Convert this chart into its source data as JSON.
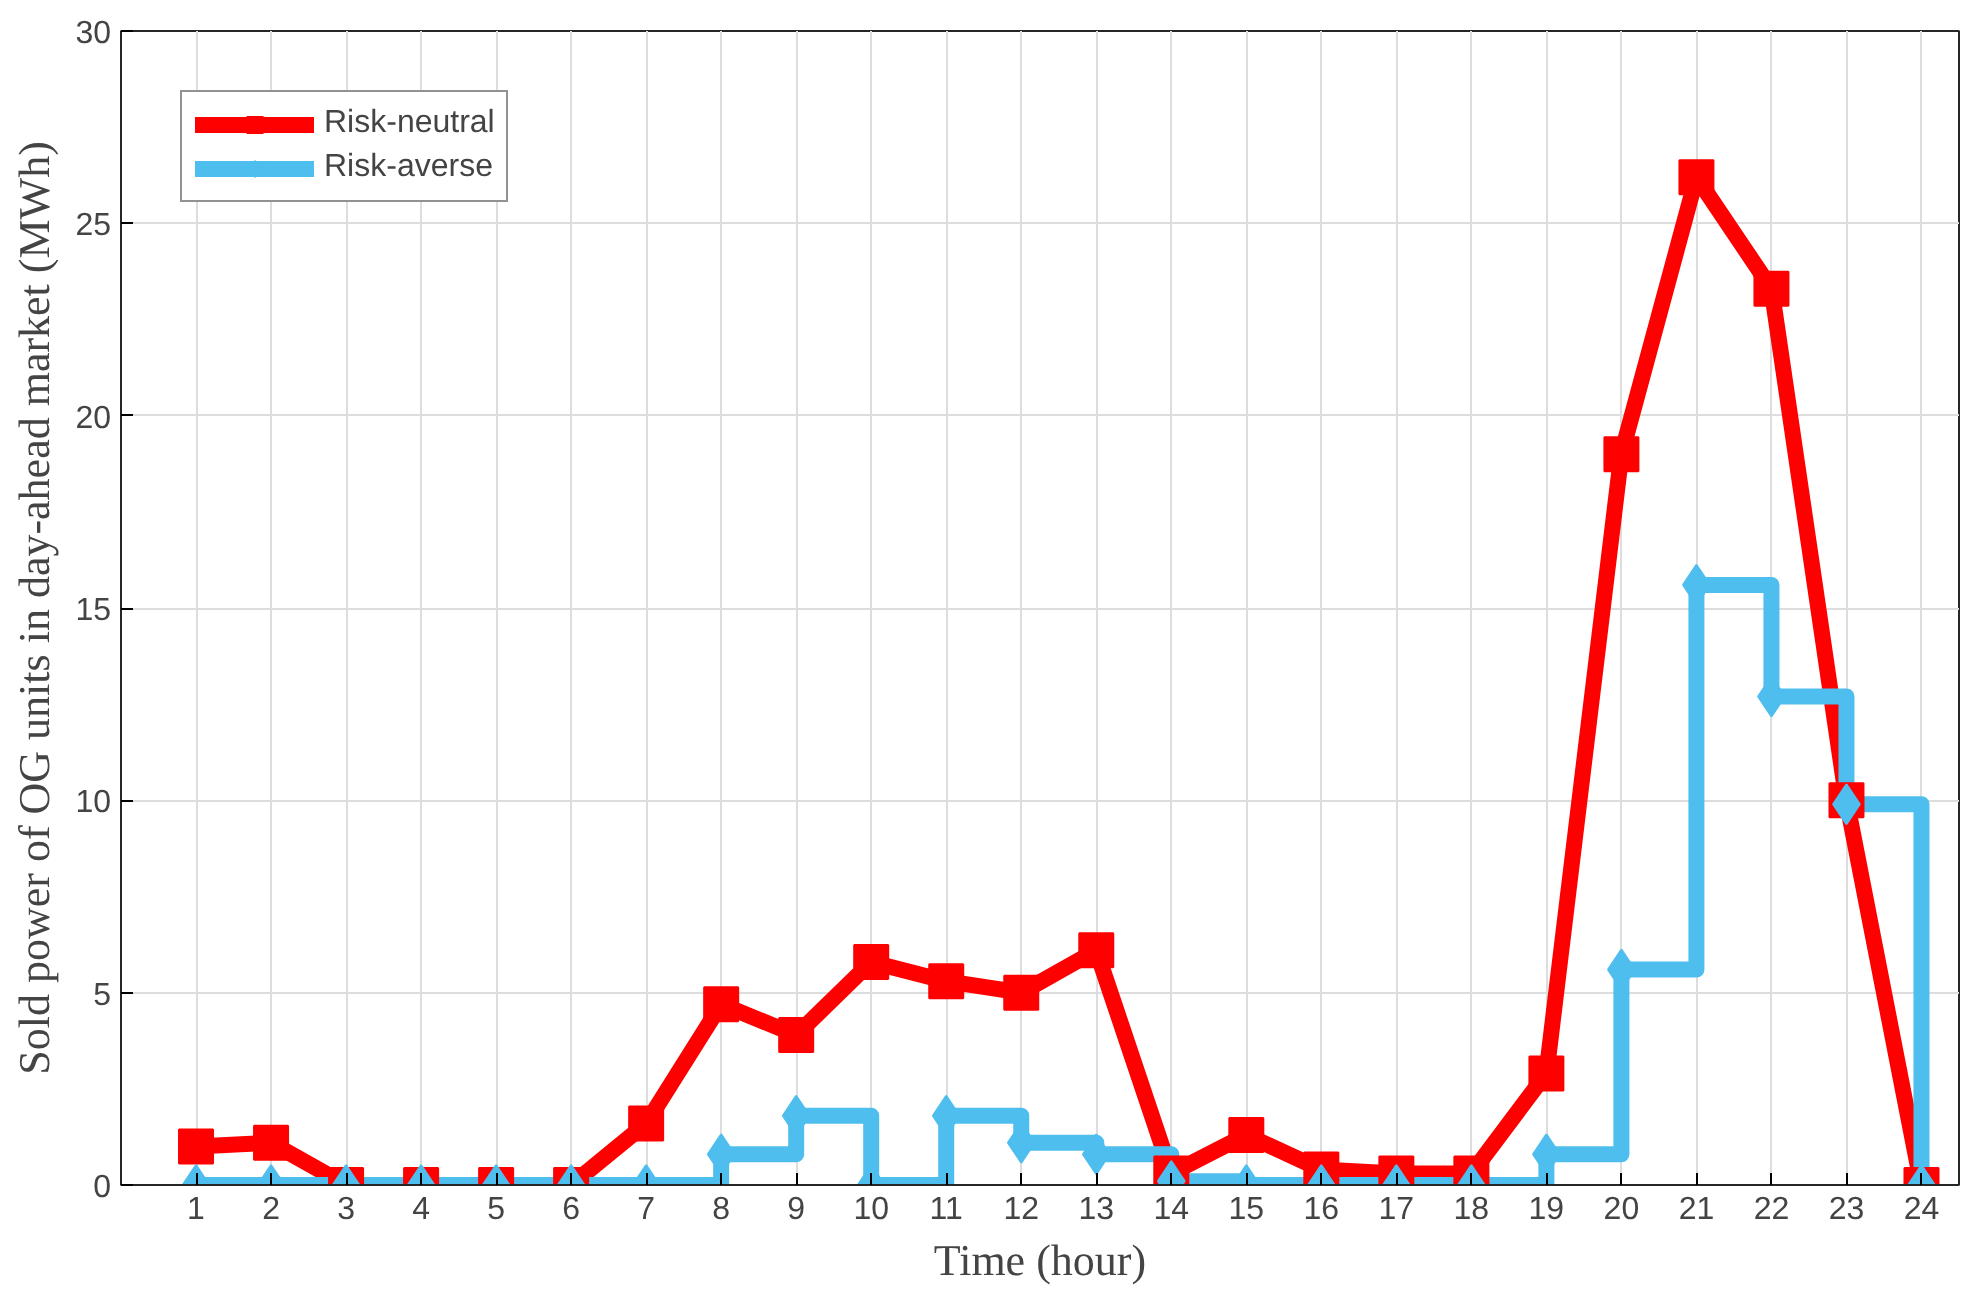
{
  "chart_data": {
    "type": "line",
    "xlabel": "Time (hour)",
    "ylabel": "Sold power of OG units in day-ahead market (MWh)",
    "x": [
      1,
      2,
      3,
      4,
      5,
      6,
      7,
      8,
      9,
      10,
      11,
      12,
      13,
      14,
      15,
      16,
      17,
      18,
      19,
      20,
      21,
      22,
      23,
      24
    ],
    "series": [
      {
        "name": "Risk-neutral",
        "marker": "square",
        "color": "#ff0000",
        "values": [
          1.0,
          1.1,
          0,
          0,
          0,
          0,
          1.6,
          4.7,
          3.9,
          5.8,
          5.3,
          5.0,
          6.1,
          0.3,
          1.3,
          0.4,
          0.3,
          0.3,
          2.9,
          19.0,
          26.2,
          23.3,
          10.0,
          0
        ]
      },
      {
        "name": "Risk-averse",
        "type": "step",
        "marker": "diamond",
        "color": "#4dbeee",
        "values": [
          0,
          0,
          0,
          0,
          0,
          0,
          0,
          0.8,
          1.8,
          0,
          1.8,
          1.1,
          0.8,
          0.1,
          0,
          0,
          0,
          0,
          0.8,
          5.6,
          15.6,
          12.7,
          9.9,
          0
        ]
      }
    ],
    "xlim": [
      0,
      24.5
    ],
    "xticks": [
      1,
      2,
      3,
      4,
      5,
      6,
      7,
      8,
      9,
      10,
      11,
      12,
      13,
      14,
      15,
      16,
      17,
      18,
      19,
      20,
      21,
      22,
      23,
      24
    ],
    "ylim": [
      0,
      30
    ],
    "yticks": [
      0,
      5,
      10,
      15,
      20,
      25,
      30
    ],
    "grid": true,
    "legend": "top left",
    "line_style": "solid"
  }
}
